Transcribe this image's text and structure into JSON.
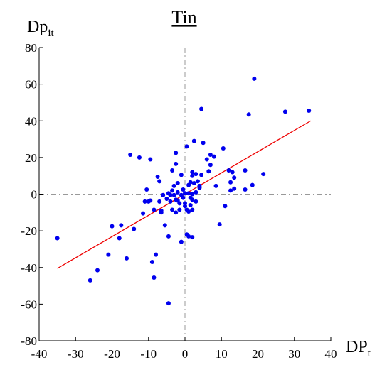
{
  "chart_data": {
    "type": "scatter",
    "title": "Tin",
    "ylabel_main": "Dp",
    "ylabel_sub": "it",
    "xlabel_main": "DP",
    "xlabel_sub": "t",
    "xlim": [
      -40,
      40
    ],
    "ylim": [
      -80,
      80
    ],
    "xticks": [
      -40,
      -30,
      -20,
      -10,
      0,
      10,
      20,
      30,
      40
    ],
    "yticks": [
      -80,
      -60,
      -40,
      -20,
      0,
      20,
      40,
      60,
      80
    ],
    "zero_lines": true,
    "fit_line": {
      "x": [
        -35,
        34.5
      ],
      "y": [
        -40.5,
        40
      ],
      "color": "#ee0000"
    },
    "point_color": "#0000ee",
    "points": [
      [
        -35,
        -24
      ],
      [
        -26,
        -47
      ],
      [
        -24,
        -41.5
      ],
      [
        -21,
        -33
      ],
      [
        -20,
        -17.5
      ],
      [
        -18,
        -24
      ],
      [
        -17.5,
        -17
      ],
      [
        -16,
        -35
      ],
      [
        -15,
        21.5
      ],
      [
        -14,
        -19
      ],
      [
        -12.5,
        20
      ],
      [
        -11.5,
        -10.5
      ],
      [
        -11,
        -4
      ],
      [
        -10.5,
        2.5
      ],
      [
        -10,
        -4
      ],
      [
        -9.5,
        19
      ],
      [
        -9.5,
        -3.5
      ],
      [
        -9,
        -37
      ],
      [
        -8.5,
        -45.5
      ],
      [
        -8.5,
        -8.5
      ],
      [
        -8,
        -33
      ],
      [
        -7.5,
        9.5
      ],
      [
        -7,
        7
      ],
      [
        -7,
        -4
      ],
      [
        -6.5,
        -9
      ],
      [
        -6.5,
        -10
      ],
      [
        -6,
        -0.5
      ],
      [
        -5.5,
        -17
      ],
      [
        -5,
        -2.5
      ],
      [
        -4.5,
        -59.5
      ],
      [
        -4.5,
        -23
      ],
      [
        -4.5,
        0.5
      ],
      [
        -4,
        -0.5
      ],
      [
        -4,
        -4
      ],
      [
        -3.5,
        13
      ],
      [
        -3.5,
        2
      ],
      [
        -3.5,
        -8.5
      ],
      [
        -3,
        4.5
      ],
      [
        -3,
        -0.5
      ],
      [
        -2.5,
        22.5
      ],
      [
        -2.5,
        16.5
      ],
      [
        -2.5,
        -3
      ],
      [
        -2.5,
        -10
      ],
      [
        -2,
        6
      ],
      [
        -2,
        1
      ],
      [
        -2,
        -3.5
      ],
      [
        -1.5,
        -8.5
      ],
      [
        -1.5,
        -5
      ],
      [
        -1,
        10.5
      ],
      [
        -1,
        -0.5
      ],
      [
        -1,
        -26
      ],
      [
        -0.5,
        2.5
      ],
      [
        -0.5,
        -2
      ],
      [
        0,
        0.5
      ],
      [
        0,
        -5
      ],
      [
        0,
        -6.5
      ],
      [
        0.5,
        26
      ],
      [
        0.5,
        -8.5
      ],
      [
        0.5,
        -22
      ],
      [
        1,
        5
      ],
      [
        1,
        0.5
      ],
      [
        1,
        -9.5
      ],
      [
        1,
        -23
      ],
      [
        1.5,
        6.5
      ],
      [
        1.5,
        -2
      ],
      [
        1.5,
        -6
      ],
      [
        2,
        12
      ],
      [
        2,
        10
      ],
      [
        2,
        0
      ],
      [
        2,
        -3
      ],
      [
        2,
        -8.5
      ],
      [
        2,
        -23.5
      ],
      [
        2.5,
        29
      ],
      [
        2.5,
        6
      ],
      [
        3,
        11
      ],
      [
        3,
        1
      ],
      [
        3,
        -4
      ],
      [
        3.5,
        7
      ],
      [
        4,
        4.5
      ],
      [
        4,
        3.5
      ],
      [
        4.5,
        46.5
      ],
      [
        4.5,
        10.5
      ],
      [
        5,
        28
      ],
      [
        6,
        19
      ],
      [
        6.5,
        12.5
      ],
      [
        7,
        21.5
      ],
      [
        7,
        16
      ],
      [
        8,
        20.5
      ],
      [
        8.5,
        4.5
      ],
      [
        9.5,
        -16.5
      ],
      [
        10.5,
        25
      ],
      [
        11,
        -6.5
      ],
      [
        12,
        13
      ],
      [
        12.5,
        6.5
      ],
      [
        12.5,
        2
      ],
      [
        13,
        12
      ],
      [
        13.5,
        3
      ],
      [
        13.5,
        9
      ],
      [
        16.5,
        13
      ],
      [
        16.5,
        2.5
      ],
      [
        17.5,
        43.5
      ],
      [
        18.5,
        5
      ],
      [
        19,
        63
      ],
      [
        21.5,
        11
      ],
      [
        27.5,
        45
      ],
      [
        34,
        45.5
      ]
    ]
  }
}
